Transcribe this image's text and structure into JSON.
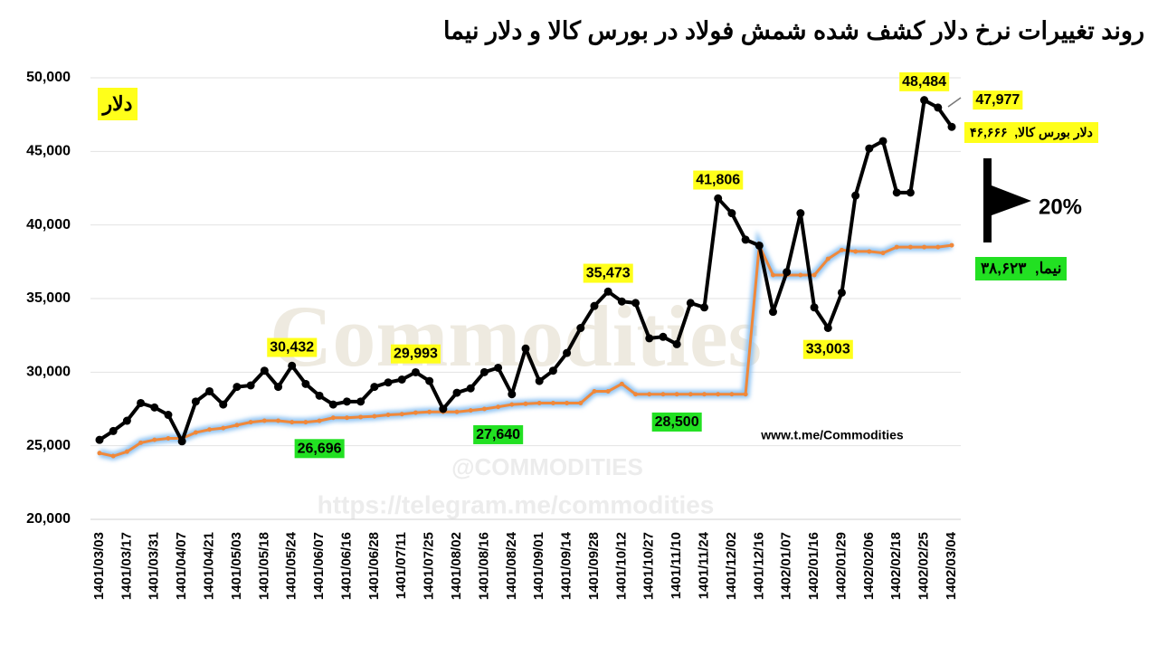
{
  "chart_data": {
    "type": "line",
    "title": "روند تغییرات نرخ دلار کشف شده شمش فولاد در بورس کالا و دلار نیما",
    "y_label": "دلار",
    "annotations": [
      "www.t.me/Commodities",
      "20%"
    ],
    "watermarks": [
      "Commodities",
      "@COMMODITIES",
      "https://telegram.me/commodities"
    ],
    "grid": true,
    "ylim": [
      20000,
      50000
    ],
    "yticks": [
      {
        "value": 20000,
        "label": "20,000"
      },
      {
        "value": 25000,
        "label": "25,000"
      },
      {
        "value": 30000,
        "label": "30,000"
      },
      {
        "value": 35000,
        "label": "35,000"
      },
      {
        "value": 40000,
        "label": "40,000"
      },
      {
        "value": 45000,
        "label": "45,000"
      },
      {
        "value": 50000,
        "label": "50,000"
      }
    ],
    "categories": [
      "1401/03/03",
      null,
      "1401/03/17",
      null,
      "1401/03/31",
      null,
      "1401/04/07",
      null,
      "1401/04/21",
      null,
      "1401/05/03",
      null,
      "1401/05/18",
      null,
      "1401/05/24",
      null,
      "1401/06/07",
      null,
      "1401/06/16",
      null,
      "1401/06/28",
      null,
      "1401/07/11",
      null,
      "1401/07/25",
      null,
      "1401/08/02",
      null,
      "1401/08/16",
      null,
      "1401/08/24",
      null,
      "1401/09/01",
      null,
      "1401/09/14",
      null,
      "1401/09/28",
      null,
      "1401/10/12",
      null,
      "1401/10/27",
      null,
      "1401/11/10",
      null,
      "1401/11/24",
      null,
      "1401/12/02",
      null,
      "1401/12/16",
      null,
      "1402/01/07",
      null,
      "1402/01/16",
      null,
      "1402/01/29",
      null,
      "1402/02/06",
      null,
      "1402/02/18",
      null,
      "1402/02/25",
      null,
      "1402/03/04"
    ],
    "series": [
      {
        "name": "دلار بورس کالا",
        "color": "#000000",
        "values": [
          25400,
          26000,
          26700,
          27900,
          27600,
          27100,
          25300,
          28000,
          28700,
          27800,
          29000,
          29100,
          30100,
          29000,
          30432,
          29200,
          28400,
          27800,
          28000,
          28000,
          29000,
          29300,
          29500,
          29993,
          29400,
          27500,
          28600,
          28900,
          30000,
          30300,
          28500,
          31600,
          29400,
          30100,
          31300,
          33000,
          34500,
          35473,
          34800,
          34700,
          32300,
          32400,
          31900,
          34700,
          34400,
          41806,
          40800,
          39000,
          38600,
          34100,
          36800,
          40800,
          34400,
          33003,
          35400,
          42000,
          45200,
          45700,
          42200,
          42200,
          48484,
          47977,
          46666
        ],
        "value_labels": [
          null,
          null,
          null,
          null,
          null,
          null,
          null,
          null,
          null,
          null,
          null,
          null,
          null,
          null,
          "30,432",
          null,
          null,
          null,
          null,
          null,
          null,
          null,
          null,
          "29,993",
          null,
          null,
          null,
          null,
          null,
          null,
          null,
          null,
          null,
          null,
          null,
          null,
          null,
          "35,473",
          null,
          null,
          null,
          null,
          null,
          null,
          null,
          "41,806",
          null,
          null,
          null,
          null,
          null,
          null,
          null,
          "33,003",
          null,
          null,
          null,
          null,
          null,
          null,
          "48,484",
          "47,977",
          ",  ۴۶,۶۶۶"
        ]
      },
      {
        "name": "نیما",
        "color": "#f0883a",
        "values": [
          24500,
          24300,
          24600,
          25200,
          25400,
          25500,
          25500,
          25900,
          26100,
          26200,
          26400,
          26600,
          26700,
          26700,
          26600,
          26600,
          26696,
          26900,
          26900,
          26950,
          27000,
          27100,
          27150,
          27250,
          27300,
          27300,
          27300,
          27400,
          27500,
          27640,
          27800,
          27850,
          27900,
          27900,
          27900,
          27900,
          28700,
          28700,
          29200,
          28500,
          28500,
          28500,
          28500,
          28500,
          28500,
          28500,
          28500,
          28500,
          38600,
          36600,
          36600,
          36600,
          36600,
          37700,
          38300,
          38200,
          38200,
          38100,
          38500,
          38500,
          38500,
          38500,
          38623
        ],
        "value_labels": [
          null,
          null,
          null,
          null,
          null,
          null,
          null,
          null,
          null,
          null,
          null,
          null,
          null,
          null,
          null,
          null,
          "26,696",
          null,
          null,
          null,
          null,
          null,
          null,
          null,
          null,
          null,
          null,
          null,
          null,
          "27,640",
          null,
          null,
          null,
          null,
          null,
          null,
          null,
          null,
          null,
          null,
          null,
          null,
          "28,500",
          null,
          null,
          null,
          null,
          null,
          null,
          null,
          null,
          null,
          null,
          null,
          null,
          null,
          null,
          null,
          null,
          null,
          null,
          null,
          ",  ۳۸,۶۲۳"
        ]
      }
    ]
  }
}
